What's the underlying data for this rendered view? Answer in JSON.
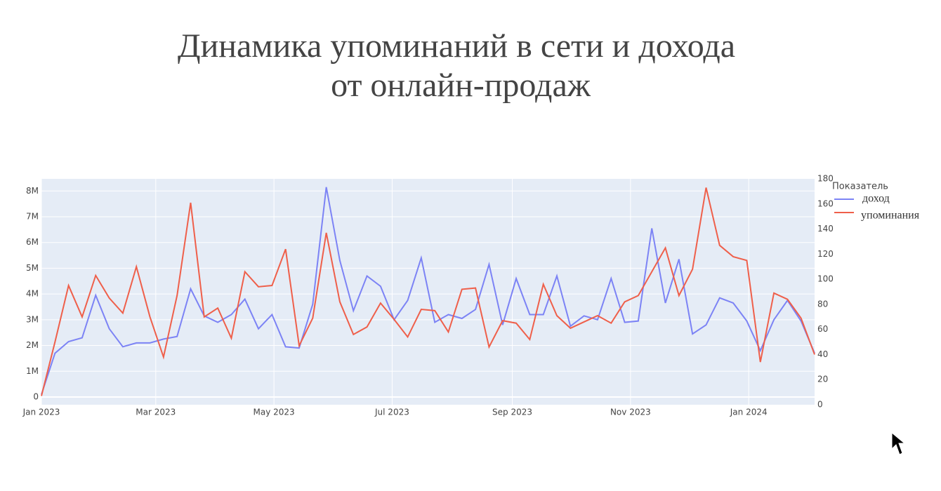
{
  "chart_data": {
    "type": "line",
    "title": [
      "Динамика упоминаний в сети и дохода",
      "от онлайн-продаж"
    ],
    "legend_title": "Показатель",
    "legend": "right",
    "grid": true,
    "x": [
      0,
      7,
      14,
      21,
      28,
      35,
      42,
      49,
      56,
      63,
      70,
      77,
      84,
      91,
      98,
      105,
      112,
      119,
      126,
      133,
      140,
      147,
      154,
      161,
      168,
      175,
      182,
      189,
      196,
      203,
      210,
      217,
      224,
      231,
      238,
      245,
      252,
      259,
      266,
      273,
      280,
      287,
      294,
      301,
      308,
      315,
      322,
      329,
      336,
      343,
      350,
      357,
      364,
      371,
      378,
      385,
      392,
      399
    ],
    "xlim": [
      0,
      399
    ],
    "xticks": [
      {
        "value": 0,
        "label": "Jan 2023"
      },
      {
        "value": 59,
        "label": "Mar 2023"
      },
      {
        "value": 120,
        "label": "May 2023"
      },
      {
        "value": 181,
        "label": "Jul 2023"
      },
      {
        "value": 243,
        "label": "Sep 2023"
      },
      {
        "value": 304,
        "label": "Nov 2023"
      },
      {
        "value": 365,
        "label": "Jan 2024"
      }
    ],
    "ylim": [
      -300000,
      8470000
    ],
    "yticks": [
      0,
      {
        "value": 1000000,
        "label": "1M"
      },
      {
        "value": 2000000,
        "label": "2M"
      },
      {
        "value": 3000000,
        "label": "3M"
      },
      {
        "value": 4000000,
        "label": "4M"
      },
      {
        "value": 5000000,
        "label": "5M"
      },
      {
        "value": 6000000,
        "label": "6M"
      },
      {
        "value": 7000000,
        "label": "7M"
      },
      {
        "value": 8000000,
        "label": "8M"
      }
    ],
    "y2lim": [
      0,
      180
    ],
    "y2ticks": [
      0,
      20,
      40,
      60,
      80,
      100,
      120,
      140,
      160,
      180
    ],
    "series": [
      {
        "name": "доход",
        "color": "#7c83f5",
        "values": [
          100000,
          1700000,
          2150000,
          2300000,
          3950000,
          2650000,
          1950000,
          2100000,
          2100000,
          2250000,
          2350000,
          4200000,
          3150000,
          2900000,
          3200000,
          3800000,
          2650000,
          3200000,
          1950000,
          1900000,
          3600000,
          8150000,
          5300000,
          3350000,
          4700000,
          4300000,
          3000000,
          3750000,
          5400000,
          2900000,
          3200000,
          3050000,
          3400000,
          5150000,
          2800000,
          4600000,
          3200000,
          3200000,
          4700000,
          2750000,
          3150000,
          3000000,
          4600000,
          2900000,
          2950000,
          6550000,
          3650000,
          5350000,
          2450000,
          2800000,
          3850000,
          3650000,
          2950000,
          1800000,
          3000000,
          3750000,
          2950000,
          1700000
        ]
      },
      {
        "name": "упоминания",
        "color": "#ef5f4a",
        "axis": "y2",
        "values": [
          7,
          50,
          95,
          70,
          103,
          85,
          73,
          110,
          70,
          38,
          87,
          161,
          70,
          77,
          53,
          106,
          94,
          95,
          124,
          47,
          69,
          137,
          82,
          56,
          62,
          81,
          68,
          54,
          76,
          75,
          58,
          92,
          93,
          46,
          67,
          65,
          52,
          96,
          71,
          61,
          66,
          71,
          65,
          82,
          87,
          106,
          125,
          87,
          108,
          173,
          127,
          118,
          115,
          34,
          89,
          84,
          69,
          40
        ]
      }
    ]
  }
}
